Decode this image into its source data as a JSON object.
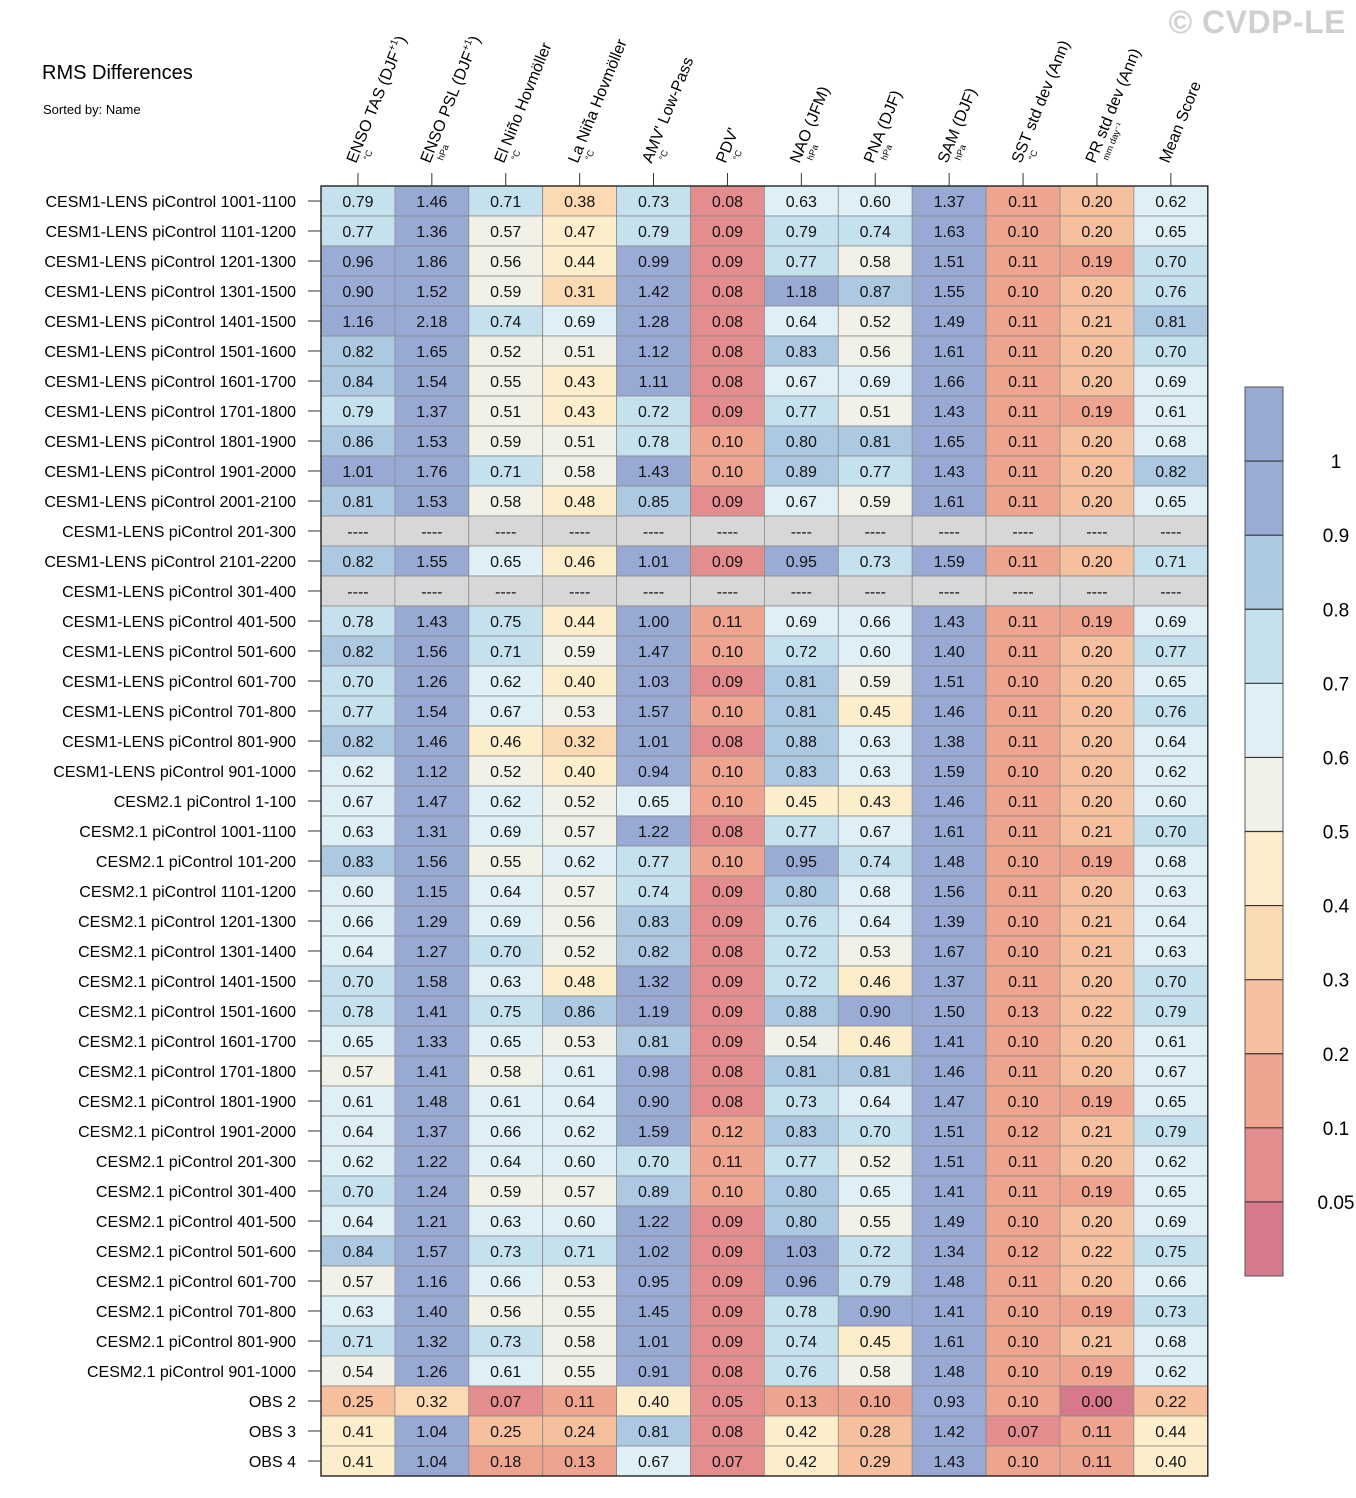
{
  "title": "RMS Differences",
  "subtitle": "Sorted by: Name",
  "copyright": "© CVDP-LE",
  "chart_data": {
    "type": "heatmap",
    "columns": [
      {
        "label": "ENSO TAS (DJF",
        "sup": "+1",
        "close": ")",
        "unit": "°C"
      },
      {
        "label": "ENSO PSL (DJF",
        "sup": "+1",
        "close": ")",
        "unit": "hPa"
      },
      {
        "label": "El Niño Hovmöller",
        "sup": "",
        "close": "",
        "unit": "°C"
      },
      {
        "label": "La Niña Hovmöller",
        "sup": "",
        "close": "",
        "unit": "°C"
      },
      {
        "label": "AMV' Low-Pass",
        "sup": "",
        "close": "",
        "unit": "°C"
      },
      {
        "label": "PDV'",
        "sup": "",
        "close": "",
        "unit": "°C"
      },
      {
        "label": "NAO (JFM)",
        "sup": "",
        "close": "",
        "unit": "hPa"
      },
      {
        "label": "PNA (DJF)",
        "sup": "",
        "close": "",
        "unit": "hPa"
      },
      {
        "label": "SAM (DJF)",
        "sup": "",
        "close": "",
        "unit": "hPa"
      },
      {
        "label": "SST std dev (Ann)",
        "sup": "",
        "close": "",
        "unit": "°C"
      },
      {
        "label": "PR std dev (Ann)",
        "sup": "",
        "close": "",
        "unit": "mm day⁻¹"
      },
      {
        "label": "Mean Score",
        "sup": "",
        "close": "",
        "unit": ""
      }
    ],
    "rows": [
      {
        "name": "CESM1-LENS piControl 1001-1100",
        "values": [
          0.79,
          1.46,
          0.71,
          0.38,
          0.73,
          0.08,
          0.63,
          0.6,
          1.37,
          0.11,
          0.2,
          0.62
        ]
      },
      {
        "name": "CESM1-LENS piControl 1101-1200",
        "values": [
          0.77,
          1.36,
          0.57,
          0.47,
          0.79,
          0.09,
          0.79,
          0.74,
          1.63,
          0.1,
          0.2,
          0.65
        ]
      },
      {
        "name": "CESM1-LENS piControl 1201-1300",
        "values": [
          0.96,
          1.86,
          0.56,
          0.44,
          0.99,
          0.09,
          0.77,
          0.58,
          1.51,
          0.11,
          0.19,
          0.7
        ]
      },
      {
        "name": "CESM1-LENS piControl 1301-1500",
        "values": [
          0.9,
          1.52,
          0.59,
          0.31,
          1.42,
          0.08,
          1.18,
          0.87,
          1.55,
          0.1,
          0.2,
          0.76
        ]
      },
      {
        "name": "CESM1-LENS piControl 1401-1500",
        "values": [
          1.16,
          2.18,
          0.74,
          0.69,
          1.28,
          0.08,
          0.64,
          0.52,
          1.49,
          0.11,
          0.21,
          0.81
        ]
      },
      {
        "name": "CESM1-LENS piControl 1501-1600",
        "values": [
          0.82,
          1.65,
          0.52,
          0.51,
          1.12,
          0.08,
          0.83,
          0.56,
          1.61,
          0.11,
          0.2,
          0.7
        ]
      },
      {
        "name": "CESM1-LENS piControl 1601-1700",
        "values": [
          0.84,
          1.54,
          0.55,
          0.43,
          1.11,
          0.08,
          0.67,
          0.69,
          1.66,
          0.11,
          0.2,
          0.69
        ]
      },
      {
        "name": "CESM1-LENS piControl 1701-1800",
        "values": [
          0.79,
          1.37,
          0.51,
          0.43,
          0.72,
          0.09,
          0.77,
          0.51,
          1.43,
          0.11,
          0.19,
          0.61
        ]
      },
      {
        "name": "CESM1-LENS piControl 1801-1900",
        "values": [
          0.86,
          1.53,
          0.59,
          0.51,
          0.78,
          0.1,
          0.8,
          0.81,
          1.65,
          0.11,
          0.2,
          0.68
        ]
      },
      {
        "name": "CESM1-LENS piControl 1901-2000",
        "values": [
          1.01,
          1.76,
          0.71,
          0.58,
          1.43,
          0.1,
          0.89,
          0.77,
          1.43,
          0.11,
          0.2,
          0.82
        ]
      },
      {
        "name": "CESM1-LENS piControl 2001-2100",
        "values": [
          0.81,
          1.53,
          0.58,
          0.48,
          0.85,
          0.09,
          0.67,
          0.59,
          1.61,
          0.11,
          0.2,
          0.65
        ]
      },
      {
        "name": "CESM1-LENS piControl 201-300",
        "values": [
          null,
          null,
          null,
          null,
          null,
          null,
          null,
          null,
          null,
          null,
          null,
          null
        ]
      },
      {
        "name": "CESM1-LENS piControl 2101-2200",
        "values": [
          0.82,
          1.55,
          0.65,
          0.46,
          1.01,
          0.09,
          0.95,
          0.73,
          1.59,
          0.11,
          0.2,
          0.71
        ]
      },
      {
        "name": "CESM1-LENS piControl 301-400",
        "values": [
          null,
          null,
          null,
          null,
          null,
          null,
          null,
          null,
          null,
          null,
          null,
          null
        ]
      },
      {
        "name": "CESM1-LENS piControl 401-500",
        "values": [
          0.78,
          1.43,
          0.75,
          0.44,
          1.0,
          0.11,
          0.69,
          0.66,
          1.43,
          0.11,
          0.19,
          0.69
        ]
      },
      {
        "name": "CESM1-LENS piControl 501-600",
        "values": [
          0.82,
          1.56,
          0.71,
          0.59,
          1.47,
          0.1,
          0.72,
          0.6,
          1.4,
          0.11,
          0.2,
          0.77
        ]
      },
      {
        "name": "CESM1-LENS piControl 601-700",
        "values": [
          0.7,
          1.26,
          0.62,
          0.4,
          1.03,
          0.09,
          0.81,
          0.59,
          1.51,
          0.1,
          0.2,
          0.65
        ]
      },
      {
        "name": "CESM1-LENS piControl 701-800",
        "values": [
          0.77,
          1.54,
          0.67,
          0.53,
          1.57,
          0.1,
          0.81,
          0.45,
          1.46,
          0.11,
          0.2,
          0.76
        ]
      },
      {
        "name": "CESM1-LENS piControl 801-900",
        "values": [
          0.82,
          1.46,
          0.46,
          0.32,
          1.01,
          0.08,
          0.88,
          0.63,
          1.38,
          0.11,
          0.2,
          0.64
        ]
      },
      {
        "name": "CESM1-LENS piControl 901-1000",
        "values": [
          0.62,
          1.12,
          0.52,
          0.4,
          0.94,
          0.1,
          0.83,
          0.63,
          1.59,
          0.1,
          0.2,
          0.62
        ]
      },
      {
        "name": "CESM2.1 piControl 1-100",
        "values": [
          0.67,
          1.47,
          0.62,
          0.52,
          0.65,
          0.1,
          0.45,
          0.43,
          1.46,
          0.11,
          0.2,
          0.6
        ]
      },
      {
        "name": "CESM2.1 piControl 1001-1100",
        "values": [
          0.63,
          1.31,
          0.69,
          0.57,
          1.22,
          0.08,
          0.77,
          0.67,
          1.61,
          0.11,
          0.21,
          0.7
        ]
      },
      {
        "name": "CESM2.1 piControl 101-200",
        "values": [
          0.83,
          1.56,
          0.55,
          0.62,
          0.77,
          0.1,
          0.95,
          0.74,
          1.48,
          0.1,
          0.19,
          0.68
        ]
      },
      {
        "name": "CESM2.1 piControl 1101-1200",
        "values": [
          0.6,
          1.15,
          0.64,
          0.57,
          0.74,
          0.09,
          0.8,
          0.68,
          1.56,
          0.11,
          0.2,
          0.63
        ]
      },
      {
        "name": "CESM2.1 piControl 1201-1300",
        "values": [
          0.66,
          1.29,
          0.69,
          0.56,
          0.83,
          0.09,
          0.76,
          0.64,
          1.39,
          0.1,
          0.21,
          0.64
        ]
      },
      {
        "name": "CESM2.1 piControl 1301-1400",
        "values": [
          0.64,
          1.27,
          0.7,
          0.52,
          0.82,
          0.08,
          0.72,
          0.53,
          1.67,
          0.1,
          0.21,
          0.63
        ]
      },
      {
        "name": "CESM2.1 piControl 1401-1500",
        "values": [
          0.7,
          1.58,
          0.63,
          0.48,
          1.32,
          0.09,
          0.72,
          0.46,
          1.37,
          0.11,
          0.2,
          0.7
        ]
      },
      {
        "name": "CESM2.1 piControl 1501-1600",
        "values": [
          0.78,
          1.41,
          0.75,
          0.86,
          1.19,
          0.09,
          0.88,
          0.9,
          1.5,
          0.13,
          0.22,
          0.79
        ]
      },
      {
        "name": "CESM2.1 piControl 1601-1700",
        "values": [
          0.65,
          1.33,
          0.65,
          0.53,
          0.81,
          0.09,
          0.54,
          0.46,
          1.41,
          0.1,
          0.2,
          0.61
        ]
      },
      {
        "name": "CESM2.1 piControl 1701-1800",
        "values": [
          0.57,
          1.41,
          0.58,
          0.61,
          0.98,
          0.08,
          0.81,
          0.81,
          1.46,
          0.11,
          0.2,
          0.67
        ]
      },
      {
        "name": "CESM2.1 piControl 1801-1900",
        "values": [
          0.61,
          1.48,
          0.61,
          0.64,
          0.9,
          0.08,
          0.73,
          0.64,
          1.47,
          0.1,
          0.19,
          0.65
        ]
      },
      {
        "name": "CESM2.1 piControl 1901-2000",
        "values": [
          0.64,
          1.37,
          0.66,
          0.62,
          1.59,
          0.12,
          0.83,
          0.7,
          1.51,
          0.12,
          0.21,
          0.79
        ]
      },
      {
        "name": "CESM2.1 piControl 201-300",
        "values": [
          0.62,
          1.22,
          0.64,
          0.6,
          0.7,
          0.11,
          0.77,
          0.52,
          1.51,
          0.11,
          0.2,
          0.62
        ]
      },
      {
        "name": "CESM2.1 piControl 301-400",
        "values": [
          0.7,
          1.24,
          0.59,
          0.57,
          0.89,
          0.1,
          0.8,
          0.65,
          1.41,
          0.11,
          0.19,
          0.65
        ]
      },
      {
        "name": "CESM2.1 piControl 401-500",
        "values": [
          0.64,
          1.21,
          0.63,
          0.6,
          1.22,
          0.09,
          0.8,
          0.55,
          1.49,
          0.1,
          0.2,
          0.69
        ]
      },
      {
        "name": "CESM2.1 piControl 501-600",
        "values": [
          0.84,
          1.57,
          0.73,
          0.71,
          1.02,
          0.09,
          1.03,
          0.72,
          1.34,
          0.12,
          0.22,
          0.75
        ]
      },
      {
        "name": "CESM2.1 piControl 601-700",
        "values": [
          0.57,
          1.16,
          0.66,
          0.53,
          0.95,
          0.09,
          0.96,
          0.79,
          1.48,
          0.11,
          0.2,
          0.66
        ]
      },
      {
        "name": "CESM2.1 piControl 701-800",
        "values": [
          0.63,
          1.4,
          0.56,
          0.55,
          1.45,
          0.09,
          0.78,
          0.9,
          1.41,
          0.1,
          0.19,
          0.73
        ]
      },
      {
        "name": "CESM2.1 piControl 801-900",
        "values": [
          0.71,
          1.32,
          0.73,
          0.58,
          1.01,
          0.09,
          0.74,
          0.45,
          1.61,
          0.1,
          0.21,
          0.68
        ]
      },
      {
        "name": "CESM2.1 piControl 901-1000",
        "values": [
          0.54,
          1.26,
          0.61,
          0.55,
          0.91,
          0.08,
          0.76,
          0.58,
          1.48,
          0.1,
          0.19,
          0.62
        ]
      },
      {
        "name": "OBS 2",
        "values": [
          0.25,
          0.32,
          0.07,
          0.11,
          0.4,
          0.05,
          0.13,
          0.1,
          0.93,
          0.1,
          0.0,
          0.22
        ]
      },
      {
        "name": "OBS 3",
        "values": [
          0.41,
          1.04,
          0.25,
          0.24,
          0.81,
          0.08,
          0.42,
          0.28,
          1.42,
          0.07,
          0.11,
          0.44
        ]
      },
      {
        "name": "OBS 4",
        "values": [
          0.41,
          1.04,
          0.18,
          0.13,
          0.67,
          0.07,
          0.42,
          0.29,
          1.43,
          0.1,
          0.11,
          0.4
        ]
      }
    ],
    "missing_label": "----",
    "missing_color": "#d7d7d7",
    "colorbar": {
      "boundaries": [
        0.05,
        0.1,
        0.2,
        0.3,
        0.4,
        0.5,
        0.6,
        0.7,
        0.8,
        0.9,
        1
      ],
      "tick_labels": [
        "0.05",
        "0.1",
        "0.2",
        "0.3",
        "0.4",
        "0.5",
        "0.6",
        "0.7",
        "0.8",
        "0.9",
        "1"
      ],
      "colors": [
        "#d6798b",
        "#e48d8f",
        "#eea48f",
        "#f6c09e",
        "#fbd9b2",
        "#fdeecb",
        "#f2f1e7",
        "#deeff5",
        "#c6e1ee",
        "#acc9e1",
        "#9aacd5",
        "#98a9d4"
      ]
    }
  }
}
